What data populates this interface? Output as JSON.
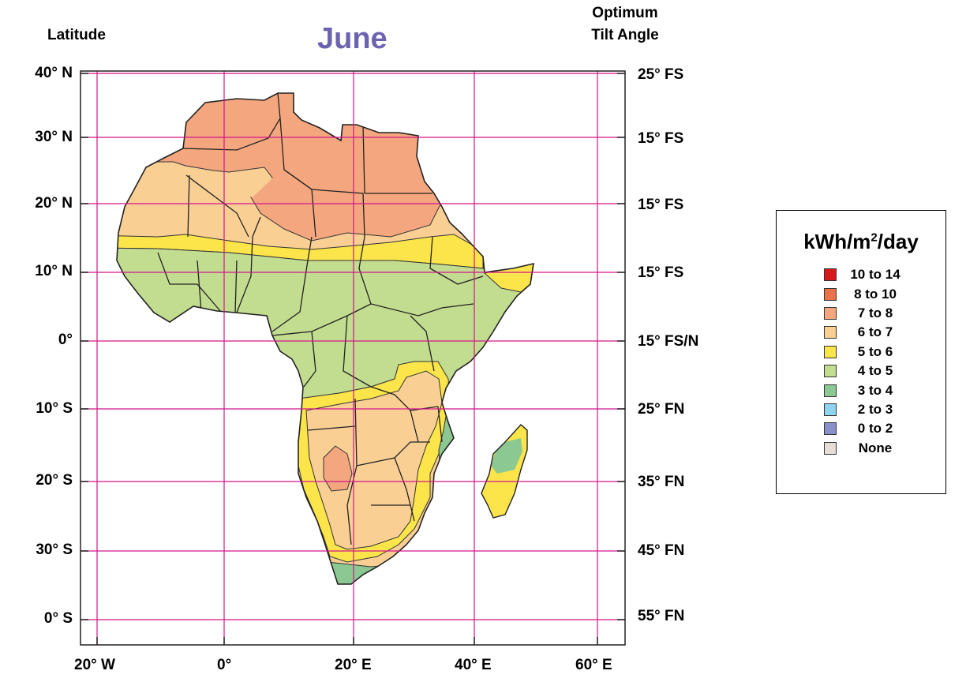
{
  "header": {
    "left_label": "Latitude",
    "title": "June",
    "right_label_line1": "Optimum",
    "right_label_line2": "Tilt Angle"
  },
  "axes": {
    "latitude_labels": [
      "40° N",
      "30° N",
      "20° N",
      "10° N",
      "0°",
      "10° S",
      "20° S",
      "30° S",
      "0° S"
    ],
    "tilt_labels": [
      "25° FS",
      "15° FS",
      "15° FS",
      "15° FS",
      "15° FS/N",
      "25° FN",
      "35° FN",
      "45° FN",
      "55° FN"
    ],
    "longitude_labels": [
      "20° W",
      "0°",
      "20° E",
      "40° E",
      "60° E"
    ]
  },
  "legend": {
    "title_main": "kWh/m",
    "title_sup": "2",
    "title_end": "/day",
    "items": [
      {
        "label": "10 to 14",
        "color": "#d7191c"
      },
      {
        "label": "8 to 10",
        "color": "#e8734a"
      },
      {
        "label": "7 to 8",
        "color": "#f4a77f"
      },
      {
        "label": "6 to 7",
        "color": "#f9cf94"
      },
      {
        "label": "5 to 6",
        "color": "#fbe54a"
      },
      {
        "label": "4 to 5",
        "color": "#c2dc90"
      },
      {
        "label": "3 to 4",
        "color": "#8cc891"
      },
      {
        "label": "2 to 3",
        "color": "#8fd3ee"
      },
      {
        "label": "0 to 2",
        "color": "#8a90c8"
      },
      {
        "label": "None",
        "color": "#e6ded6"
      }
    ]
  },
  "colors": {
    "grid": "#d4158c",
    "title": "#6b63b0",
    "zone_7_8": "#f4a77f",
    "zone_6_7": "#f9cf94",
    "zone_5_6": "#fbe54a",
    "zone_4_5": "#c2dc90",
    "zone_3_4": "#8cc891"
  }
}
